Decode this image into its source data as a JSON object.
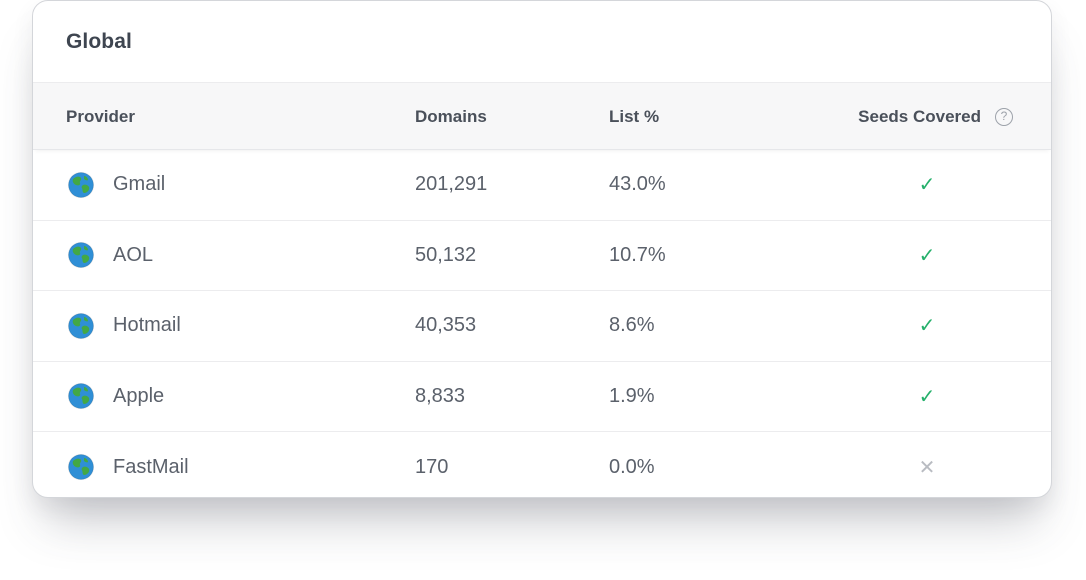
{
  "card": {
    "title": "Global"
  },
  "table": {
    "headers": {
      "provider": "Provider",
      "domains": "Domains",
      "list_pct": "List %",
      "seeds_covered": "Seeds Covered",
      "seeds_help_glyph": "?"
    },
    "rows": [
      {
        "provider": "Gmail",
        "domains": "201,291",
        "list_pct": "43.0%",
        "seeds_covered": true,
        "seeds_glyph": "✓"
      },
      {
        "provider": "AOL",
        "domains": "50,132",
        "list_pct": "10.7%",
        "seeds_covered": true,
        "seeds_glyph": "✓"
      },
      {
        "provider": "Hotmail",
        "domains": "40,353",
        "list_pct": "8.6%",
        "seeds_covered": true,
        "seeds_glyph": "✓"
      },
      {
        "provider": "Apple",
        "domains": "8,833",
        "list_pct": "1.9%",
        "seeds_covered": true,
        "seeds_glyph": "✓"
      },
      {
        "provider": "FastMail",
        "domains": "170",
        "list_pct": "0.0%",
        "seeds_covered": false,
        "seeds_glyph": "✕"
      }
    ]
  },
  "icons": {
    "provider_icon": "globe-icon",
    "covered_icon": "checkmark-icon",
    "not_covered_icon": "cross-icon",
    "help_icon": "help-circle-icon"
  },
  "colors": {
    "check": "#25b06b",
    "cross": "#b9bcc2",
    "title": "#3e4550",
    "header_bg": "#f7f7f8",
    "globe_ocean": "#2f8fd6",
    "globe_land": "#43a845"
  }
}
